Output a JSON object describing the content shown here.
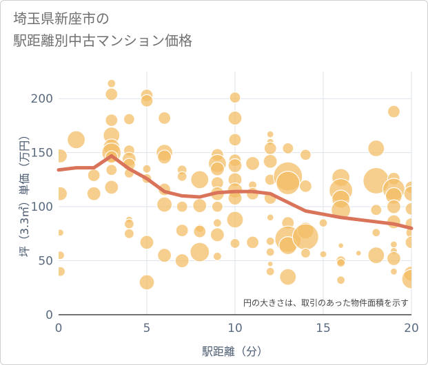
{
  "chart_data": {
    "type": "scatter",
    "title": "埼玉県新座市の\n駅距離別中古マンション価格",
    "xlabel": "駅距離（分）",
    "ylabel": "坪（3.3㎡）単価（万円）",
    "xlim": [
      0,
      20
    ],
    "ylim": [
      0,
      225
    ],
    "xticks": [
      0,
      5,
      10,
      15,
      20
    ],
    "yticks": [
      0,
      50,
      100,
      150,
      200
    ],
    "grid": true,
    "note": "円の大きさは、取引のあった物件面積を示す",
    "bubble_color": "#f2bd63",
    "line_color": "#d9735a",
    "bubbles": [
      {
        "x": 0.1,
        "y": 147,
        "s": 10
      },
      {
        "x": 0.1,
        "y": 112,
        "s": 10
      },
      {
        "x": 0.1,
        "y": 76,
        "s": 5
      },
      {
        "x": 0.1,
        "y": 55,
        "s": 6
      },
      {
        "x": 0.1,
        "y": 40,
        "s": 7
      },
      {
        "x": 1.0,
        "y": 162,
        "s": 13
      },
      {
        "x": 2.0,
        "y": 129,
        "s": 9
      },
      {
        "x": 2.0,
        "y": 112,
        "s": 10
      },
      {
        "x": 3.0,
        "y": 214,
        "s": 6
      },
      {
        "x": 3.0,
        "y": 204,
        "s": 9
      },
      {
        "x": 3.0,
        "y": 180,
        "s": 9
      },
      {
        "x": 3.0,
        "y": 166,
        "s": 12
      },
      {
        "x": 3.0,
        "y": 155,
        "s": 12
      },
      {
        "x": 3.0,
        "y": 150,
        "s": 14
      },
      {
        "x": 3.0,
        "y": 146,
        "s": 9
      },
      {
        "x": 3.0,
        "y": 134,
        "s": 8
      },
      {
        "x": 3.0,
        "y": 118,
        "s": 10
      },
      {
        "x": 4.0,
        "y": 181,
        "s": 8
      },
      {
        "x": 4.0,
        "y": 152,
        "s": 8
      },
      {
        "x": 4.0,
        "y": 144,
        "s": 10
      },
      {
        "x": 4.0,
        "y": 139,
        "s": 9
      },
      {
        "x": 4.0,
        "y": 131,
        "s": 7
      },
      {
        "x": 4.0,
        "y": 88,
        "s": 5
      },
      {
        "x": 4.0,
        "y": 84,
        "s": 7
      },
      {
        "x": 4.0,
        "y": 75,
        "s": 7
      },
      {
        "x": 5.0,
        "y": 203,
        "s": 9
      },
      {
        "x": 5.0,
        "y": 198,
        "s": 9
      },
      {
        "x": 5.0,
        "y": 135,
        "s": 6
      },
      {
        "x": 5.0,
        "y": 126,
        "s": 7
      },
      {
        "x": 5.0,
        "y": 67,
        "s": 10
      },
      {
        "x": 5.0,
        "y": 30,
        "s": 11
      },
      {
        "x": 6.0,
        "y": 182,
        "s": 9
      },
      {
        "x": 6.0,
        "y": 150,
        "s": 12
      },
      {
        "x": 6.0,
        "y": 146,
        "s": 10
      },
      {
        "x": 6.0,
        "y": 116,
        "s": 9
      },
      {
        "x": 6.0,
        "y": 102,
        "s": 11
      },
      {
        "x": 6.0,
        "y": 55,
        "s": 10
      },
      {
        "x": 7.0,
        "y": 134,
        "s": 7
      },
      {
        "x": 7.0,
        "y": 128,
        "s": 7
      },
      {
        "x": 7.0,
        "y": 100,
        "s": 8
      },
      {
        "x": 7.0,
        "y": 78,
        "s": 9
      },
      {
        "x": 7.0,
        "y": 50,
        "s": 10
      },
      {
        "x": 8.0,
        "y": 125,
        "s": 13
      },
      {
        "x": 8.0,
        "y": 101,
        "s": 10
      },
      {
        "x": 8.0,
        "y": 80,
        "s": 6
      },
      {
        "x": 8.0,
        "y": 77,
        "s": 9
      },
      {
        "x": 8.0,
        "y": 58,
        "s": 14
      },
      {
        "x": 9.0,
        "y": 148,
        "s": 9
      },
      {
        "x": 9.0,
        "y": 140,
        "s": 13
      },
      {
        "x": 9.0,
        "y": 135,
        "s": 10
      },
      {
        "x": 9.0,
        "y": 122,
        "s": 9
      },
      {
        "x": 9.0,
        "y": 112,
        "s": 10
      },
      {
        "x": 9.0,
        "y": 100,
        "s": 8
      },
      {
        "x": 9.0,
        "y": 85,
        "s": 6
      },
      {
        "x": 9.0,
        "y": 74,
        "s": 10
      },
      {
        "x": 9.0,
        "y": 54,
        "s": 6
      },
      {
        "x": 10.0,
        "y": 201,
        "s": 8
      },
      {
        "x": 10.0,
        "y": 182,
        "s": 10
      },
      {
        "x": 10.0,
        "y": 162,
        "s": 9
      },
      {
        "x": 10.0,
        "y": 143,
        "s": 9
      },
      {
        "x": 10.0,
        "y": 138,
        "s": 10
      },
      {
        "x": 10.0,
        "y": 125,
        "s": 10
      },
      {
        "x": 10.0,
        "y": 115,
        "s": 11
      },
      {
        "x": 10.0,
        "y": 108,
        "s": 10
      },
      {
        "x": 10.0,
        "y": 88,
        "s": 12
      },
      {
        "x": 10.0,
        "y": 66,
        "s": 7
      },
      {
        "x": 11.0,
        "y": 140,
        "s": 10
      },
      {
        "x": 11.0,
        "y": 120,
        "s": 6
      },
      {
        "x": 11.0,
        "y": 112,
        "s": 9
      },
      {
        "x": 11.0,
        "y": 67,
        "s": 9
      },
      {
        "x": 12.0,
        "y": 167,
        "s": 5
      },
      {
        "x": 12.0,
        "y": 160,
        "s": 5
      },
      {
        "x": 12.0,
        "y": 154,
        "s": 9
      },
      {
        "x": 12.0,
        "y": 142,
        "s": 10
      },
      {
        "x": 12.0,
        "y": 125,
        "s": 8
      },
      {
        "x": 12.0,
        "y": 108,
        "s": 9
      },
      {
        "x": 12.0,
        "y": 90,
        "s": 5
      },
      {
        "x": 12.0,
        "y": 68,
        "s": 6
      },
      {
        "x": 12.0,
        "y": 58,
        "s": 6
      },
      {
        "x": 12.0,
        "y": 47,
        "s": 4
      },
      {
        "x": 12.0,
        "y": 40,
        "s": 6
      },
      {
        "x": 13.0,
        "y": 154,
        "s": 8
      },
      {
        "x": 13.0,
        "y": 128,
        "s": 21
      },
      {
        "x": 13.0,
        "y": 122,
        "s": 17
      },
      {
        "x": 13.0,
        "y": 85,
        "s": 9
      },
      {
        "x": 13.0,
        "y": 70,
        "s": 19
      },
      {
        "x": 13.0,
        "y": 64,
        "s": 13
      },
      {
        "x": 13.0,
        "y": 35,
        "s": 12
      },
      {
        "x": 14.0,
        "y": 148,
        "s": 8
      },
      {
        "x": 14.0,
        "y": 119,
        "s": 9
      },
      {
        "x": 14.0,
        "y": 78,
        "s": 12
      },
      {
        "x": 14.0,
        "y": 72,
        "s": 19
      },
      {
        "x": 14.0,
        "y": 57,
        "s": 7
      },
      {
        "x": 15.0,
        "y": 85,
        "s": 6
      },
      {
        "x": 15.0,
        "y": 56,
        "s": 5
      },
      {
        "x": 16.0,
        "y": 127,
        "s": 13
      },
      {
        "x": 16.0,
        "y": 115,
        "s": 17
      },
      {
        "x": 16.0,
        "y": 107,
        "s": 13
      },
      {
        "x": 16.0,
        "y": 97,
        "s": 14
      },
      {
        "x": 16.0,
        "y": 64,
        "s": 4
      },
      {
        "x": 16.0,
        "y": 50,
        "s": 7
      },
      {
        "x": 16.0,
        "y": 48,
        "s": 6
      },
      {
        "x": 16.0,
        "y": 32,
        "s": 6
      },
      {
        "x": 17.0,
        "y": 57,
        "s": 4
      },
      {
        "x": 18.0,
        "y": 154,
        "s": 12
      },
      {
        "x": 18.0,
        "y": 124,
        "s": 19
      },
      {
        "x": 18.0,
        "y": 97,
        "s": 8
      },
      {
        "x": 18.0,
        "y": 76,
        "s": 6
      },
      {
        "x": 18.0,
        "y": 55,
        "s": 12
      },
      {
        "x": 19.0,
        "y": 188,
        "s": 9
      },
      {
        "x": 19.0,
        "y": 126,
        "s": 9
      },
      {
        "x": 19.0,
        "y": 116,
        "s": 16
      },
      {
        "x": 19.0,
        "y": 110,
        "s": 12
      },
      {
        "x": 19.0,
        "y": 100,
        "s": 10
      },
      {
        "x": 19.0,
        "y": 86,
        "s": 10
      },
      {
        "x": 19.0,
        "y": 65,
        "s": 5
      },
      {
        "x": 19.0,
        "y": 59,
        "s": 5
      },
      {
        "x": 19.0,
        "y": 52,
        "s": 10
      },
      {
        "x": 19.0,
        "y": 40,
        "s": 5
      },
      {
        "x": 20.0,
        "y": 118,
        "s": 9
      },
      {
        "x": 20.0,
        "y": 112,
        "s": 11
      },
      {
        "x": 20.0,
        "y": 98,
        "s": 9
      },
      {
        "x": 20.0,
        "y": 84,
        "s": 9
      },
      {
        "x": 20.0,
        "y": 76,
        "s": 8
      },
      {
        "x": 20.0,
        "y": 67,
        "s": 9
      },
      {
        "x": 20.0,
        "y": 38,
        "s": 11
      },
      {
        "x": 20.0,
        "y": 33,
        "s": 14
      }
    ],
    "series": [
      {
        "x": [
          0,
          1,
          2,
          3,
          4,
          5,
          6,
          7,
          8,
          9,
          10,
          11,
          12,
          13,
          14,
          15,
          16,
          17,
          18,
          19,
          20
        ],
        "values": [
          134,
          136,
          136,
          147,
          135,
          126,
          114,
          110,
          109,
          113,
          114,
          114,
          112,
          104,
          96,
          93,
          90,
          88,
          86,
          84,
          80
        ]
      }
    ]
  }
}
